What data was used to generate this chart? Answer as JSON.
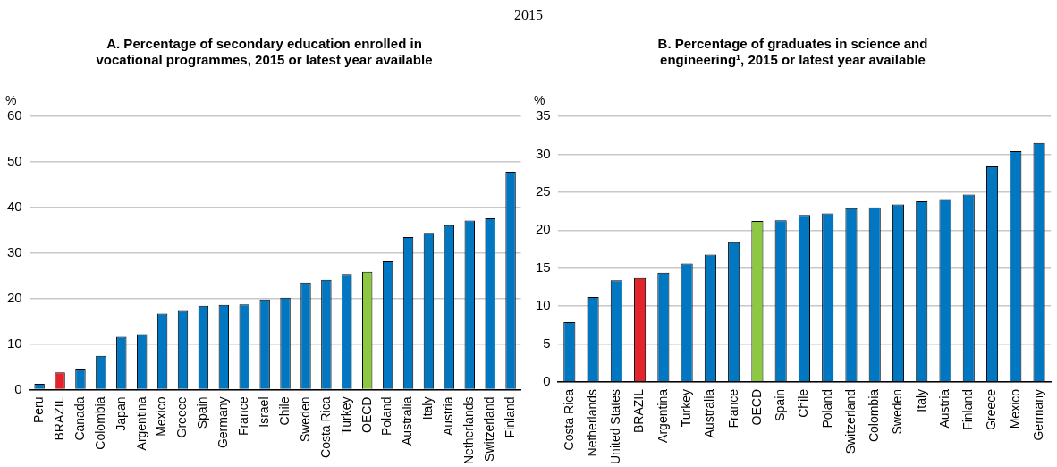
{
  "chart_data": [
    {
      "type": "bar",
      "title": "A. Percentage of secondary education enrolled in vocational programmes, 2015 or latest year available",
      "annotations": [
        "2015"
      ],
      "ylabel": "%",
      "categories": [
        "Peru",
        "BRAZIL",
        "Canada",
        "Colombia",
        "Japan",
        "Argentina",
        "Mexico",
        "Greece",
        "Spain",
        "Germany",
        "France",
        "Israel",
        "Chile",
        "Sweden",
        "Costa Rica",
        "Turkey",
        "OECD",
        "Poland",
        "Australia",
        "Italy",
        "Austria",
        "Netherlands",
        "Switzerland",
        "Finland"
      ],
      "values": [
        1.3,
        3.8,
        4.4,
        7.4,
        11.6,
        12.2,
        16.7,
        17.3,
        18.4,
        18.6,
        18.7,
        19.8,
        20.2,
        23.5,
        24.1,
        25.4,
        25.9,
        28.2,
        33.5,
        34.4,
        36.1,
        37.1,
        37.6,
        47.8
      ],
      "colors": [
        "#0077c0",
        "#e3242b",
        "#0077c0",
        "#0077c0",
        "#0077c0",
        "#0077c0",
        "#0077c0",
        "#0077c0",
        "#0077c0",
        "#0077c0",
        "#0077c0",
        "#0077c0",
        "#0077c0",
        "#0077c0",
        "#0077c0",
        "#0077c0",
        "#8cc841",
        "#0077c0",
        "#0077c0",
        "#0077c0",
        "#0077c0",
        "#0077c0",
        "#0077c0",
        "#0077c0"
      ],
      "ylim": [
        0,
        60
      ],
      "yticks": [
        0,
        10,
        20,
        30,
        40,
        50,
        60
      ],
      "grid": "y",
      "legend": false
    },
    {
      "type": "bar",
      "title": "B. Percentage of graduates in science and engineering¹, 2015 or latest year available",
      "ylabel": "%",
      "categories": [
        "Costa Rica",
        "Netherlands",
        "United States",
        "BRAZIL",
        "Argentina",
        "Turkey",
        "Australia",
        "France",
        "OECD",
        "Spain",
        "Chile",
        "Poland",
        "Switzerland",
        "Colombia",
        "Sweden",
        "Italy",
        "Austria",
        "Finland",
        "Greece",
        "Mexico",
        "Germany"
      ],
      "values": [
        7.9,
        11.2,
        13.4,
        13.7,
        14.4,
        15.6,
        16.8,
        18.4,
        21.2,
        21.3,
        22.0,
        22.2,
        22.9,
        23.0,
        23.4,
        23.8,
        24.1,
        24.7,
        28.4,
        30.4,
        31.5
      ],
      "colors": [
        "#0077c0",
        "#0077c0",
        "#0077c0",
        "#e3242b",
        "#0077c0",
        "#0077c0",
        "#0077c0",
        "#0077c0",
        "#8cc841",
        "#0077c0",
        "#0077c0",
        "#0077c0",
        "#0077c0",
        "#0077c0",
        "#0077c0",
        "#0077c0",
        "#0077c0",
        "#0077c0",
        "#0077c0",
        "#0077c0",
        "#0077c0"
      ],
      "ylim": [
        0,
        35
      ],
      "yticks": [
        0,
        5,
        10,
        15,
        20,
        25,
        30,
        35
      ],
      "grid": "y",
      "legend": false
    }
  ]
}
